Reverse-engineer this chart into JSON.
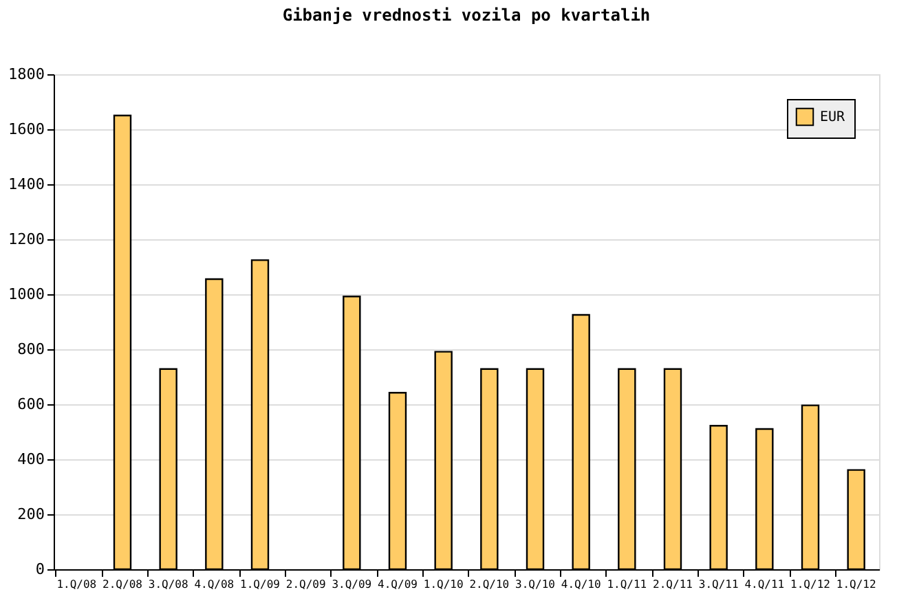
{
  "chart_data": {
    "type": "bar",
    "title": "Gibanje vrednosti vozila po kvartalih",
    "categories": [
      "1.Q/08",
      "2.Q/08",
      "3.Q/08",
      "4.Q/08",
      "1.Q/09",
      "2.Q/09",
      "3.Q/09",
      "4.Q/09",
      "1.Q/10",
      "2.Q/10",
      "3.Q/10",
      "4.Q/10",
      "1.Q/11",
      "2.Q/11",
      "3.Q/11",
      "4.Q/11",
      "1.Q/12",
      "1.Q/12"
    ],
    "series": [
      {
        "name": "EUR",
        "color": "#ffcc66",
        "values": [
          null,
          1650,
          728,
          1055,
          1124,
          null,
          992,
          642,
          791,
          728,
          728,
          925,
          728,
          728,
          522,
          510,
          596,
          361
        ]
      }
    ],
    "ylim": [
      0,
      1800
    ],
    "yticks": [
      0,
      200,
      400,
      600,
      800,
      1000,
      1200,
      1400,
      1600,
      1800
    ],
    "grid": "y",
    "legend": "top right"
  }
}
